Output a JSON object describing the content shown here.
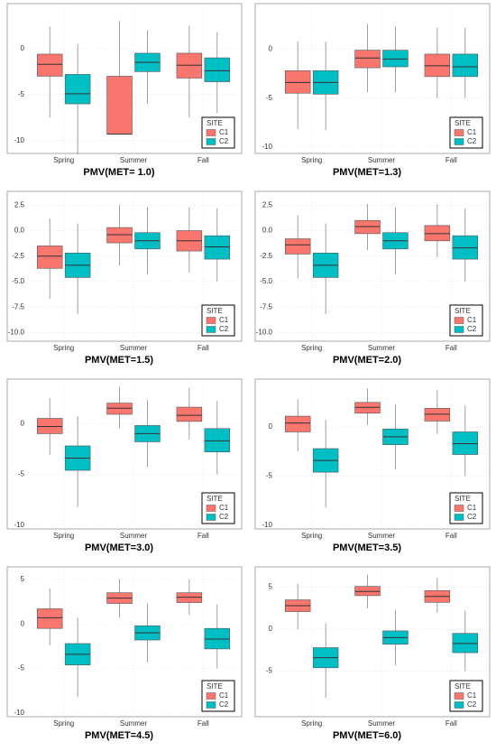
{
  "chart_data": [
    {
      "type": "box",
      "title": "PMV(MET= 1.0)",
      "categories": [
        "Spring",
        "Summer",
        "Fall"
      ],
      "legend_title": "SITE",
      "legend_position": "bottom-right",
      "grid": true,
      "ylim": [
        -11,
        4.5
      ],
      "yticks": [
        -10,
        -5,
        0
      ],
      "series": [
        {
          "name": "C1",
          "color": "#f8766d",
          "values": [
            {
              "low": -7.5,
              "q1": -3.0,
              "median": -1.7,
              "q3": -0.6,
              "high": 2.4
            },
            {
              "low": -9.3,
              "q1": -9.3,
              "median": -9.3,
              "q3": -3.0,
              "high": 3.0
            },
            {
              "low": -7.5,
              "q1": -3.2,
              "median": -1.8,
              "q3": -0.5,
              "high": 2.5
            }
          ]
        },
        {
          "name": "C2",
          "color": "#00bfc4",
          "values": [
            {
              "low": -11.5,
              "q1": -6.0,
              "median": -4.9,
              "q3": -2.8,
              "high": 0.5
            },
            {
              "low": -6.0,
              "q1": -2.5,
              "median": -1.5,
              "q3": -0.5,
              "high": 2.0
            },
            {
              "low": -7.0,
              "q1": -3.6,
              "median": -2.4,
              "q3": -1.0,
              "high": 1.8
            }
          ]
        }
      ]
    },
    {
      "type": "box",
      "title": "PMV(MET=1.3)",
      "categories": [
        "Spring",
        "Summer",
        "Fall"
      ],
      "legend_title": "SITE",
      "legend_position": "bottom-right",
      "grid": true,
      "ylim": [
        -10.3,
        4.3
      ],
      "yticks": [
        -10,
        -5,
        0
      ],
      "series": [
        {
          "name": "C1",
          "color": "#f8766d",
          "values": [
            {
              "low": -8.2,
              "q1": -4.5,
              "median": -3.4,
              "q3": -2.2,
              "high": 0.8
            },
            {
              "low": -4.4,
              "q1": -1.9,
              "median": -0.9,
              "q3": -0.1,
              "high": 2.6
            },
            {
              "low": -5.0,
              "q1": -2.8,
              "median": -1.7,
              "q3": -0.5,
              "high": 2.2
            }
          ]
        },
        {
          "name": "C2",
          "color": "#00bfc4",
          "values": [
            {
              "low": -8.3,
              "q1": -4.6,
              "median": -3.4,
              "q3": -2.2,
              "high": 0.8
            },
            {
              "low": -4.4,
              "q1": -1.8,
              "median": -1.0,
              "q3": -0.1,
              "high": 2.3
            },
            {
              "low": -5.0,
              "q1": -2.8,
              "median": -1.8,
              "q3": -0.5,
              "high": 2.2
            }
          ]
        }
      ]
    },
    {
      "type": "box",
      "title": "PMV(MET=1.5)",
      "categories": [
        "Spring",
        "Summer",
        "Fall"
      ],
      "legend_title": "SITE",
      "legend_position": "bottom-right",
      "grid": true,
      "ylim": [
        -10.5,
        3.5
      ],
      "yticks": [
        {
          "value": -10,
          "label": "-10.0"
        },
        -7.5,
        {
          "value": -5,
          "label": "-5.0"
        },
        -2.5,
        {
          "value": 0,
          "label": "0.0"
        },
        2.5
      ],
      "series": [
        {
          "name": "C1",
          "color": "#f8766d",
          "values": [
            {
              "low": -6.7,
              "q1": -3.7,
              "median": -2.5,
              "q3": -1.5,
              "high": 1.2
            },
            {
              "low": -3.4,
              "q1": -1.2,
              "median": -0.4,
              "q3": 0.3,
              "high": 2.5
            },
            {
              "low": -4.1,
              "q1": -2.0,
              "median": -1.0,
              "q3": 0.0,
              "high": 2.3
            }
          ]
        },
        {
          "name": "C2",
          "color": "#00bfc4",
          "values": [
            {
              "low": -8.2,
              "q1": -4.6,
              "median": -3.4,
              "q3": -2.2,
              "high": 0.7
            },
            {
              "low": -4.3,
              "q1": -1.8,
              "median": -1.0,
              "q3": -0.2,
              "high": 2.3
            },
            {
              "low": -5.0,
              "q1": -2.8,
              "median": -1.6,
              "q3": -0.5,
              "high": 2.2
            }
          ]
        }
      ]
    },
    {
      "type": "box",
      "title": "PMV(MET=2.0)",
      "categories": [
        "Spring",
        "Summer",
        "Fall"
      ],
      "legend_title": "SITE",
      "legend_position": "bottom-right",
      "grid": true,
      "ylim": [
        -10.5,
        3.5
      ],
      "yticks": [
        {
          "value": -10,
          "label": "-10.0"
        },
        -7.5,
        {
          "value": -5,
          "label": "-5.0"
        },
        -2.5,
        {
          "value": 0,
          "label": "0.0"
        },
        2.5
      ],
      "series": [
        {
          "name": "C1",
          "color": "#f8766d",
          "values": [
            {
              "low": -4.7,
              "q1": -2.3,
              "median": -1.4,
              "q3": -0.8,
              "high": 1.5
            },
            {
              "low": -1.9,
              "q1": -0.3,
              "median": 0.4,
              "q3": 1.0,
              "high": 2.6
            },
            {
              "low": -2.6,
              "q1": -1.0,
              "median": -0.3,
              "q3": 0.5,
              "high": 2.6
            }
          ]
        },
        {
          "name": "C2",
          "color": "#00bfc4",
          "values": [
            {
              "low": -8.2,
              "q1": -4.6,
              "median": -3.4,
              "q3": -2.2,
              "high": 0.7
            },
            {
              "low": -4.3,
              "q1": -1.8,
              "median": -1.0,
              "q3": -0.2,
              "high": 2.3
            },
            {
              "low": -5.0,
              "q1": -2.8,
              "median": -1.7,
              "q3": -0.5,
              "high": 2.2
            }
          ]
        }
      ]
    },
    {
      "type": "box",
      "title": "PMV(MET=3.0)",
      "categories": [
        "Spring",
        "Summer",
        "Fall"
      ],
      "legend_title": "SITE",
      "legend_position": "bottom-right",
      "grid": true,
      "ylim": [
        -10,
        4
      ],
      "yticks": [
        -10,
        -5,
        0
      ],
      "series": [
        {
          "name": "C1",
          "color": "#f8766d",
          "values": [
            {
              "low": -3.1,
              "q1": -1.0,
              "median": -0.3,
              "q3": 0.5,
              "high": 2.5
            },
            {
              "low": -0.5,
              "q1": 0.9,
              "median": 1.5,
              "q3": 2.0,
              "high": 3.6
            },
            {
              "low": -1.6,
              "q1": 0.2,
              "median": 0.8,
              "q3": 1.6,
              "high": 3.5
            }
          ]
        },
        {
          "name": "C2",
          "color": "#00bfc4",
          "values": [
            {
              "low": -8.2,
              "q1": -4.6,
              "median": -3.4,
              "q3": -2.2,
              "high": 0.7
            },
            {
              "low": -4.3,
              "q1": -1.8,
              "median": -1.0,
              "q3": -0.2,
              "high": 2.3
            },
            {
              "low": -5.0,
              "q1": -2.8,
              "median": -1.7,
              "q3": -0.5,
              "high": 2.2
            }
          ]
        }
      ]
    },
    {
      "type": "box",
      "title": "PMV(MET=3.5)",
      "categories": [
        "Spring",
        "Summer",
        "Fall"
      ],
      "legend_title": "SITE",
      "legend_position": "bottom-right",
      "grid": true,
      "ylim": [
        -10,
        4.5
      ],
      "yticks": [
        -10,
        -5,
        0
      ],
      "series": [
        {
          "name": "C1",
          "color": "#f8766d",
          "values": [
            {
              "low": -2.5,
              "q1": -0.5,
              "median": 0.4,
              "q3": 1.1,
              "high": 2.8
            },
            {
              "low": 0.2,
              "q1": 1.4,
              "median": 2.0,
              "q3": 2.5,
              "high": 3.9
            },
            {
              "low": -0.7,
              "q1": 0.6,
              "median": 1.3,
              "q3": 1.9,
              "high": 3.8
            }
          ]
        },
        {
          "name": "C2",
          "color": "#00bfc4",
          "values": [
            {
              "low": -8.2,
              "q1": -4.6,
              "median": -3.4,
              "q3": -2.2,
              "high": 0.7
            },
            {
              "low": -4.3,
              "q1": -1.8,
              "median": -1.0,
              "q3": -0.2,
              "high": 2.3
            },
            {
              "low": -5.0,
              "q1": -2.8,
              "median": -1.7,
              "q3": -0.5,
              "high": 2.2
            }
          ]
        }
      ]
    },
    {
      "type": "box",
      "title": "PMV(MET=4.5)",
      "categories": [
        "Spring",
        "Summer",
        "Fall"
      ],
      "legend_title": "SITE",
      "legend_position": "bottom-right",
      "grid": true,
      "ylim": [
        -10,
        6
      ],
      "yticks": [
        -10,
        -5,
        0,
        5
      ],
      "series": [
        {
          "name": "C1",
          "color": "#f8766d",
          "values": [
            {
              "low": -2.4,
              "q1": -0.5,
              "median": 0.7,
              "q3": 1.7,
              "high": 4.0
            },
            {
              "low": 0.7,
              "q1": 2.3,
              "median": 2.9,
              "q3": 3.5,
              "high": 5.0
            },
            {
              "low": 1.0,
              "q1": 2.4,
              "median": 3.0,
              "q3": 3.5,
              "high": 5.0
            }
          ]
        },
        {
          "name": "C2",
          "color": "#00bfc4",
          "values": [
            {
              "low": -8.2,
              "q1": -4.6,
              "median": -3.4,
              "q3": -2.2,
              "high": 0.7
            },
            {
              "low": -4.3,
              "q1": -1.8,
              "median": -1.0,
              "q3": -0.2,
              "high": 2.3
            },
            {
              "low": -5.0,
              "q1": -2.8,
              "median": -1.7,
              "q3": -0.5,
              "high": 2.2
            }
          ]
        }
      ]
    },
    {
      "type": "box",
      "title": "PMV(MET=6.0)",
      "categories": [
        "Spring",
        "Summer",
        "Fall"
      ],
      "legend_title": "SITE",
      "legend_position": "bottom-right",
      "grid": true,
      "ylim": [
        -10,
        7
      ],
      "yticks": [
        -5,
        0,
        5
      ],
      "series": [
        {
          "name": "C1",
          "color": "#f8766d",
          "values": [
            {
              "low": 0.0,
              "q1": 2.1,
              "median": 2.8,
              "q3": 3.5,
              "high": 5.4
            },
            {
              "low": 2.5,
              "q1": 4.0,
              "median": 4.5,
              "q3": 5.1,
              "high": 6.5
            },
            {
              "low": 2.0,
              "q1": 3.2,
              "median": 3.9,
              "q3": 4.6,
              "high": 6.1
            }
          ]
        },
        {
          "name": "C2",
          "color": "#00bfc4",
          "values": [
            {
              "low": -8.2,
              "q1": -4.6,
              "median": -3.4,
              "q3": -2.2,
              "high": 0.7
            },
            {
              "low": -4.3,
              "q1": -1.8,
              "median": -1.0,
              "q3": -0.2,
              "high": 2.3
            },
            {
              "low": -5.0,
              "q1": -2.8,
              "median": -1.7,
              "q3": -0.5,
              "high": 2.2
            }
          ]
        }
      ]
    }
  ]
}
